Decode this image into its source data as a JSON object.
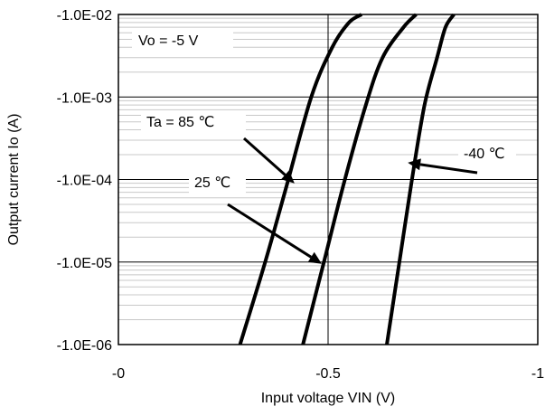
{
  "chart_data": {
    "type": "line",
    "title": "",
    "xlabel": "Input voltage VIN (V)",
    "ylabel": "Output current Io (A)",
    "xlim": [
      0,
      -1
    ],
    "ylim": [
      -1e-06,
      -0.01
    ],
    "yscale": "log",
    "x_ticks": [
      {
        "value": 0,
        "label": "-0"
      },
      {
        "value": -0.5,
        "label": "-0.5"
      },
      {
        "value": -1,
        "label": "-1"
      }
    ],
    "y_ticks": [
      {
        "value": -0.01,
        "label": "-1.0E-02"
      },
      {
        "value": -0.001,
        "label": "-1.0E-03"
      },
      {
        "value": -0.0001,
        "label": "-1.0E-04"
      },
      {
        "value": -1e-05,
        "label": "-1.0E-05"
      },
      {
        "value": -1e-06,
        "label": "-1.0E-06"
      }
    ],
    "grid": "on",
    "condition_label": "Vo = -5 V",
    "series": [
      {
        "name": "Ta = 85 ℃",
        "x": [
          -0.29,
          -0.35,
          -0.4,
          -0.46,
          -0.51,
          -0.55,
          -0.58
        ],
        "y": [
          -1e-06,
          -1e-05,
          -8e-05,
          -0.001,
          -0.004,
          -0.008,
          -0.01
        ]
      },
      {
        "name": "25 ℃",
        "x": [
          -0.44,
          -0.49,
          -0.54,
          -0.59,
          -0.63,
          -0.68,
          -0.71
        ],
        "y": [
          -1e-06,
          -1e-05,
          -0.0001,
          -0.0008,
          -0.003,
          -0.007,
          -0.01
        ]
      },
      {
        "name": "-40 ℃",
        "x": [
          -0.64,
          -0.67,
          -0.7,
          -0.73,
          -0.76,
          -0.78,
          -0.8
        ],
        "y": [
          -1e-06,
          -1e-05,
          -0.0001,
          -0.0008,
          -0.003,
          -0.007,
          -0.01
        ]
      }
    ],
    "annotations": [
      {
        "text": "Ta = 85 ℃",
        "series": 0,
        "x": -0.42,
        "y": -9e-05
      },
      {
        "text": "25 ℃",
        "series": 1,
        "x": -0.485,
        "y": -9.5e-06
      },
      {
        "text": "-40 ℃",
        "series": 2,
        "x": -0.69,
        "y": -0.00016
      }
    ]
  }
}
